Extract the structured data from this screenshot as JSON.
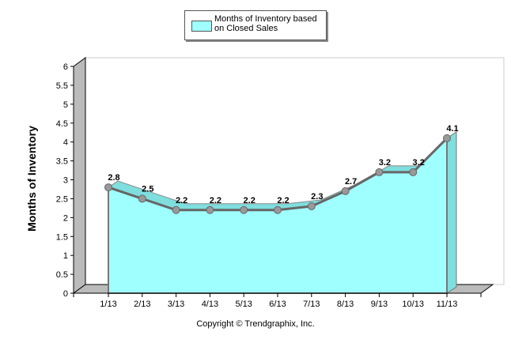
{
  "chart_data": {
    "type": "area",
    "title": "",
    "xlabel": "",
    "ylabel": "Months of Inventory",
    "categories": [
      "1/13",
      "2/13",
      "3/13",
      "4/13",
      "5/13",
      "6/13",
      "7/13",
      "8/13",
      "9/13",
      "10/13",
      "11/13"
    ],
    "series": [
      {
        "name": "Months of Inventory based on Closed Sales",
        "values": [
          2.8,
          2.5,
          2.2,
          2.2,
          2.2,
          2.2,
          2.3,
          2.7,
          3.2,
          3.2,
          4.1
        ],
        "color": "#9fffff"
      }
    ],
    "data_labels": [
      "2.8",
      "2.5",
      "2.2",
      "2.2",
      "2.2",
      "2.2",
      "2.3",
      "2.7",
      "3.2",
      "3.2",
      "4.1"
    ],
    "ylim": [
      0,
      6
    ],
    "yticks": [
      "0",
      "0.5",
      "1",
      "1.5",
      "2",
      "2.5",
      "3",
      "3.5",
      "4",
      "4.5",
      "5",
      "5.5",
      "6"
    ],
    "grid": false,
    "legend_position": "top-center",
    "style": "3d"
  },
  "copyright": "Copyright © Trendgraphix, Inc."
}
